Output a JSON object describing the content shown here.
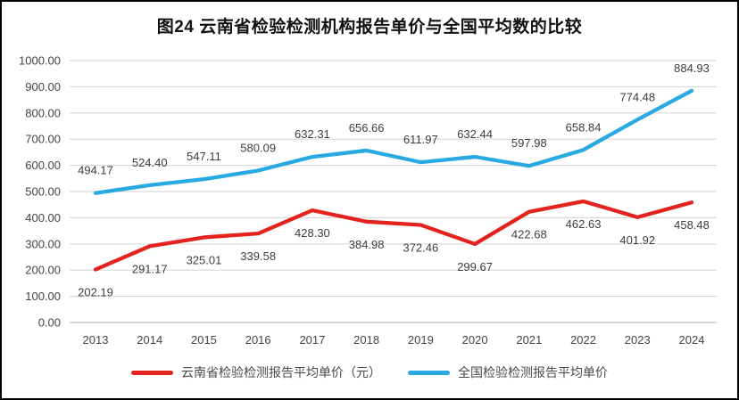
{
  "title": "图24 云南省检验检测机构报告单价与全国平均数的比较",
  "colors": {
    "border": "#000000",
    "background": "#ffffff",
    "gridline": "#d9d9d9",
    "axis_line": "#bfbfbf",
    "tick_text": "#444444",
    "data_label_text": "#3d3d3d",
    "yunnan_red": "#e3231e",
    "national_blue": "#29a9e1"
  },
  "chart_data": {
    "type": "line",
    "title": "图24 云南省检验检测机构报告单价与全国平均数的比较",
    "categories": [
      "2013",
      "2014",
      "2015",
      "2016",
      "2017",
      "2018",
      "2019",
      "2020",
      "2021",
      "2022",
      "2023",
      "2024"
    ],
    "series": [
      {
        "name": "云南省检验检测报告平均单价（元）",
        "color": "#e3231e",
        "label_position": "below",
        "values": [
          202.19,
          291.17,
          325.01,
          339.58,
          428.3,
          384.98,
          372.46,
          299.67,
          422.68,
          462.63,
          401.92,
          458.48
        ]
      },
      {
        "name": "全国检验检测报告平均单价",
        "color": "#29a9e1",
        "label_position": "above",
        "values": [
          494.17,
          524.4,
          547.11,
          580.09,
          632.31,
          656.66,
          611.97,
          632.44,
          597.98,
          658.84,
          774.48,
          884.93
        ]
      }
    ],
    "xlabel": "",
    "ylabel": "",
    "ylim": [
      0,
      1000
    ],
    "ytick_step": 100,
    "ytick_decimals": 2,
    "grid": true,
    "data_labels": true,
    "legend_position": "bottom"
  }
}
